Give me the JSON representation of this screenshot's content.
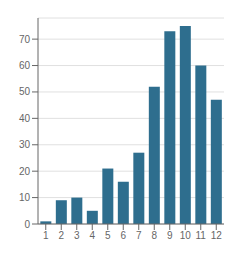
{
  "chart_data": {
    "type": "bar",
    "categories": [
      "1",
      "2",
      "3",
      "4",
      "5",
      "6",
      "7",
      "8",
      "9",
      "10",
      "11",
      "12"
    ],
    "values": [
      1,
      9,
      10,
      5,
      21,
      16,
      27,
      52,
      73,
      75,
      60,
      47
    ],
    "color": "#2e6e8e",
    "ylim": [
      0,
      78
    ],
    "yticks": [
      0,
      10,
      20,
      30,
      40,
      50,
      60,
      70
    ],
    "grid": true
  }
}
